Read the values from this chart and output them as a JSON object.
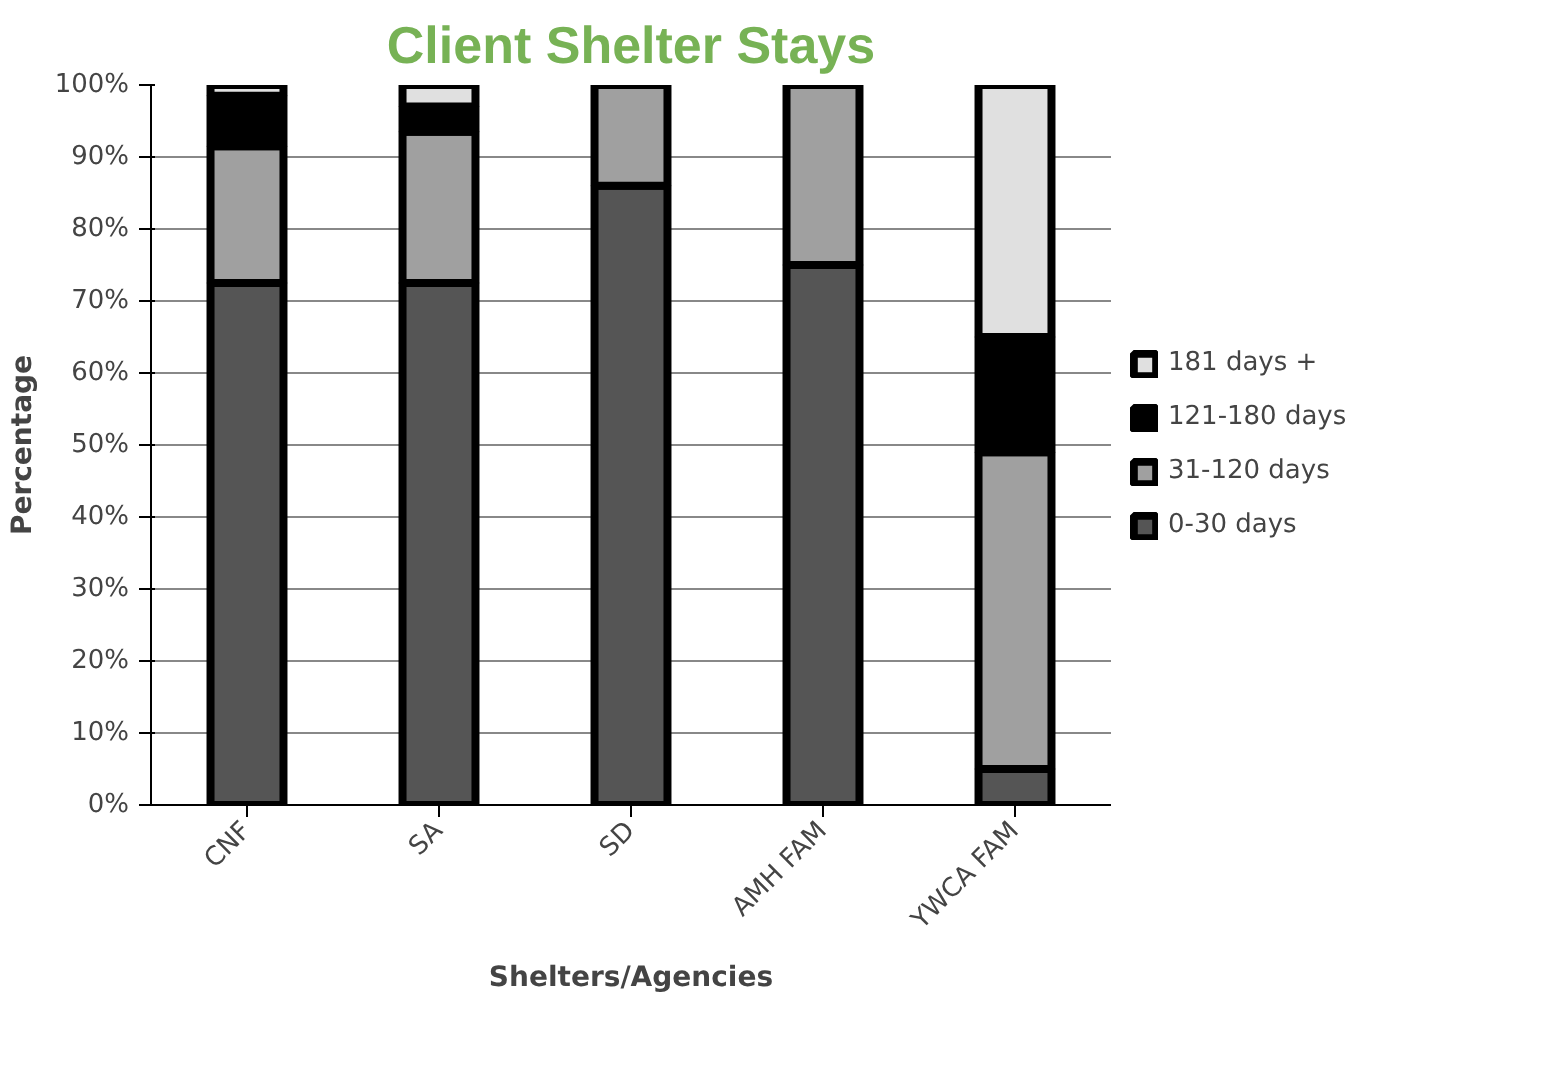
{
  "chart_data": {
    "type": "bar",
    "stacked": true,
    "title": "Client Shelter Stays",
    "xlabel": "Shelters/Agencies",
    "ylabel": "Percentage",
    "categories": [
      "CNF",
      "SA",
      "SD",
      "AMH FAM",
      "YWCA FAM"
    ],
    "series": [
      {
        "name": "0-30 days",
        "color": "#555555",
        "values": [
          72.5,
          72.5,
          86,
          75,
          5
        ]
      },
      {
        "name": "31-120 days",
        "color": "#a0a0a0",
        "values": [
          19,
          21,
          14,
          25,
          44
        ]
      },
      {
        "name": "121-180 days",
        "color": "#000000",
        "values": [
          7,
          3.5,
          0,
          0,
          16
        ]
      },
      {
        "name": "181 days +",
        "color": "#e0e0e0",
        "values": [
          1.5,
          3,
          0,
          0,
          35
        ]
      }
    ],
    "ylim": [
      0,
      100
    ],
    "yticks": [
      {
        "value": 0,
        "label": "0%"
      },
      {
        "value": 10,
        "label": "10%"
      },
      {
        "value": 20,
        "label": "20%"
      },
      {
        "value": 30,
        "label": "30%"
      },
      {
        "value": 40,
        "label": "40%"
      },
      {
        "value": 50,
        "label": "50%"
      },
      {
        "value": 60,
        "label": "60%"
      },
      {
        "value": 70,
        "label": "70%"
      },
      {
        "value": 80,
        "label": "80%"
      },
      {
        "value": 90,
        "label": "90%"
      },
      {
        "value": 100,
        "label": "100%"
      }
    ],
    "grid": "y",
    "legend": "right"
  }
}
